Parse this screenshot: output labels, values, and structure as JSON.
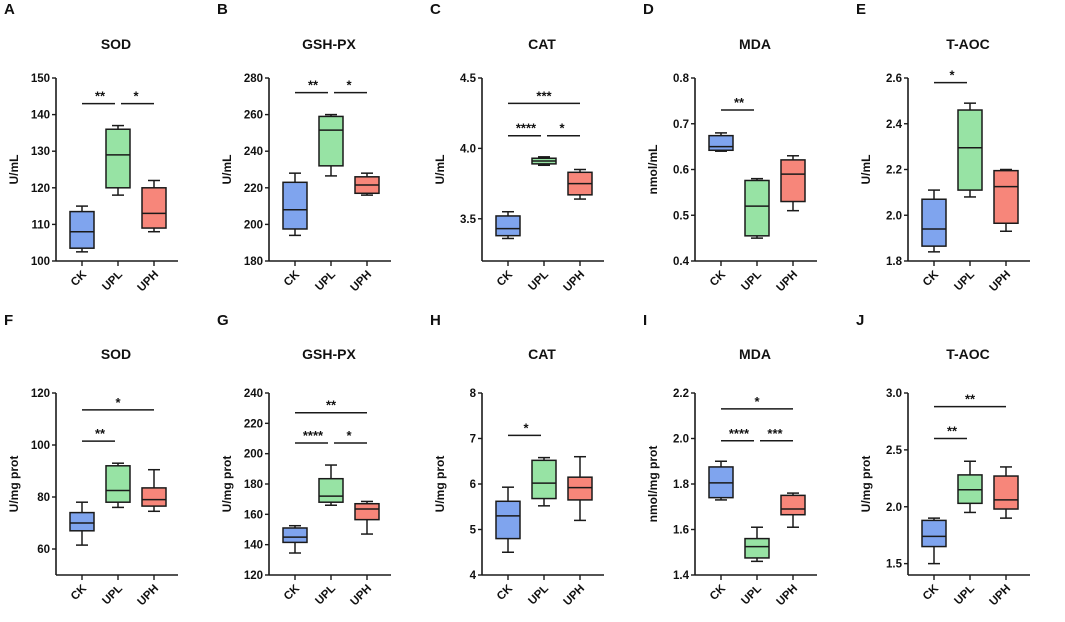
{
  "colors": {
    "CK": "#7fa4ee",
    "UPL": "#97e3a4",
    "UPH": "#f7867a",
    "stroke": "#1a1a1a"
  },
  "chart_data": [
    {
      "type": "box",
      "panel": "A",
      "title": "SOD",
      "ylabel": "U/mL",
      "ylim": [
        100,
        150
      ],
      "yticks": [
        100,
        110,
        120,
        130,
        140,
        150
      ],
      "categories": [
        "CK",
        "UPL",
        "UPH"
      ],
      "boxes": [
        [
          102.5,
          103.5,
          108,
          113.5,
          115
        ],
        [
          118,
          120,
          129,
          136,
          137
        ],
        [
          108,
          109,
          113,
          120,
          122
        ]
      ],
      "significance": [
        {
          "from": 0,
          "to": 1,
          "label": "**",
          "y": 143
        },
        {
          "from": 1,
          "to": 2,
          "label": "*",
          "y": 143
        }
      ]
    },
    {
      "type": "box",
      "panel": "B",
      "title": "GSH-PX",
      "ylabel": "U/mL",
      "ylim": [
        180,
        280
      ],
      "yticks": [
        180,
        200,
        220,
        240,
        260,
        280
      ],
      "categories": [
        "CK",
        "UPL",
        "UPH"
      ],
      "boxes": [
        [
          194,
          197.5,
          208,
          223,
          228
        ],
        [
          226.5,
          232,
          251.5,
          259,
          260
        ],
        [
          216,
          217,
          221.5,
          226,
          228
        ]
      ],
      "significance": [
        {
          "from": 0,
          "to": 1,
          "label": "**",
          "y": 272
        },
        {
          "from": 1,
          "to": 2,
          "label": "*",
          "y": 272
        }
      ]
    },
    {
      "type": "box",
      "panel": "C",
      "title": "CAT",
      "ylabel": "U/mL",
      "ylim": [
        3.2,
        4.5
      ],
      "yticks": [
        3.5,
        4.0,
        4.5
      ],
      "tickDecimals": 1,
      "categories": [
        "CK",
        "UPL",
        "UPH"
      ],
      "boxes": [
        [
          3.36,
          3.38,
          3.43,
          3.52,
          3.55
        ],
        [
          3.88,
          3.89,
          3.91,
          3.93,
          3.94
        ],
        [
          3.64,
          3.67,
          3.75,
          3.83,
          3.85
        ]
      ],
      "significance": [
        {
          "from": 0,
          "to": 1,
          "label": "****",
          "y": 4.09
        },
        {
          "from": 1,
          "to": 2,
          "label": "*",
          "y": 4.09
        },
        {
          "from": 0,
          "to": 2,
          "label": "***",
          "y": 4.32
        }
      ]
    },
    {
      "type": "box",
      "panel": "D",
      "title": "MDA",
      "ylabel": "nmol/mL",
      "ylim": [
        0.4,
        0.8
      ],
      "yticks": [
        0.4,
        0.5,
        0.6,
        0.7,
        0.8
      ],
      "tickDecimals": 1,
      "categories": [
        "CK",
        "UPL",
        "UPH"
      ],
      "boxes": [
        [
          0.64,
          0.642,
          0.65,
          0.674,
          0.68
        ],
        [
          0.45,
          0.455,
          0.52,
          0.576,
          0.58
        ],
        [
          0.51,
          0.53,
          0.59,
          0.621,
          0.63
        ]
      ],
      "significance": [
        {
          "from": 0,
          "to": 1,
          "label": "**",
          "y": 0.73
        }
      ]
    },
    {
      "type": "box",
      "panel": "E",
      "title": "T-AOC",
      "ylabel": "U/mL",
      "ylim": [
        1.8,
        2.6
      ],
      "yticks": [
        1.8,
        2.0,
        2.2,
        2.4,
        2.6
      ],
      "tickDecimals": 1,
      "categories": [
        "CK",
        "UPL",
        "UPH"
      ],
      "boxes": [
        [
          1.84,
          1.865,
          1.94,
          2.07,
          2.11
        ],
        [
          2.08,
          2.11,
          2.295,
          2.46,
          2.49
        ],
        [
          1.93,
          1.965,
          2.125,
          2.195,
          2.2
        ]
      ],
      "significance": [
        {
          "from": 0,
          "to": 1,
          "label": "*",
          "y": 2.58
        }
      ]
    },
    {
      "type": "box",
      "panel": "F",
      "title": "SOD",
      "ylabel": "U/mg prot",
      "ylim": [
        50,
        120
      ],
      "yticks": [
        60,
        80,
        100,
        120
      ],
      "categories": [
        "CK",
        "UPL",
        "UPH"
      ],
      "boxes": [
        [
          61.5,
          67,
          70,
          74,
          78
        ],
        [
          76,
          78,
          82.5,
          92,
          93
        ],
        [
          74.5,
          76.5,
          79,
          83.5,
          90.5
        ]
      ],
      "significance": [
        {
          "from": 0,
          "to": 1,
          "label": "**",
          "y": 101.5
        },
        {
          "from": 0,
          "to": 2,
          "label": "*",
          "y": 113.5
        }
      ]
    },
    {
      "type": "box",
      "panel": "G",
      "title": "GSH-PX",
      "ylabel": "U/mg prot",
      "ylim": [
        120,
        240
      ],
      "yticks": [
        120,
        140,
        160,
        180,
        200,
        220,
        240
      ],
      "categories": [
        "CK",
        "UPL",
        "UPH"
      ],
      "boxes": [
        [
          134.5,
          141.5,
          145,
          151,
          152.5
        ],
        [
          166,
          168,
          172,
          183.5,
          192.5
        ],
        [
          147,
          156.5,
          163.5,
          167,
          168.5
        ]
      ],
      "significance": [
        {
          "from": 0,
          "to": 1,
          "label": "****",
          "y": 207
        },
        {
          "from": 1,
          "to": 2,
          "label": "*",
          "y": 207
        },
        {
          "from": 0,
          "to": 2,
          "label": "**",
          "y": 227
        }
      ]
    },
    {
      "type": "box",
      "panel": "H",
      "title": "CAT",
      "ylabel": "U/mg prot",
      "ylim": [
        4,
        8
      ],
      "yticks": [
        4,
        5,
        6,
        7,
        8
      ],
      "categories": [
        "CK",
        "UPL",
        "UPH"
      ],
      "boxes": [
        [
          4.5,
          4.8,
          5.3,
          5.62,
          5.93
        ],
        [
          5.52,
          5.68,
          6.02,
          6.52,
          6.58
        ],
        [
          5.2,
          5.65,
          5.92,
          6.15,
          6.6
        ]
      ],
      "significance": [
        {
          "from": 0,
          "to": 1,
          "label": "*",
          "y": 7.07
        }
      ]
    },
    {
      "type": "box",
      "panel": "I",
      "title": "MDA",
      "ylabel": "nmol/mg prot",
      "ylim": [
        1.4,
        2.2
      ],
      "yticks": [
        1.4,
        1.6,
        1.8,
        2.0,
        2.2
      ],
      "tickDecimals": 1,
      "categories": [
        "CK",
        "UPL",
        "UPH"
      ],
      "boxes": [
        [
          1.73,
          1.74,
          1.805,
          1.875,
          1.9
        ],
        [
          1.46,
          1.475,
          1.525,
          1.56,
          1.61
        ],
        [
          1.61,
          1.665,
          1.69,
          1.75,
          1.76
        ]
      ],
      "significance": [
        {
          "from": 0,
          "to": 1,
          "label": "****",
          "y": 1.99
        },
        {
          "from": 1,
          "to": 2,
          "label": "***",
          "y": 1.99
        },
        {
          "from": 0,
          "to": 2,
          "label": "*",
          "y": 2.13
        }
      ]
    },
    {
      "type": "box",
      "panel": "J",
      "title": "T-AOC",
      "ylabel": "U/mg prot",
      "ylim": [
        1.4,
        3.0
      ],
      "yticks": [
        1.5,
        2.0,
        2.5,
        3.0
      ],
      "tickDecimals": 1,
      "categories": [
        "CK",
        "UPL",
        "UPH"
      ],
      "boxes": [
        [
          1.5,
          1.65,
          1.74,
          1.88,
          1.9
        ],
        [
          1.95,
          2.03,
          2.15,
          2.28,
          2.4
        ],
        [
          1.9,
          1.98,
          2.06,
          2.27,
          2.35
        ]
      ],
      "significance": [
        {
          "from": 0,
          "to": 1,
          "label": "**",
          "y": 2.6
        },
        {
          "from": 0,
          "to": 2,
          "label": "**",
          "y": 2.88
        }
      ]
    }
  ]
}
